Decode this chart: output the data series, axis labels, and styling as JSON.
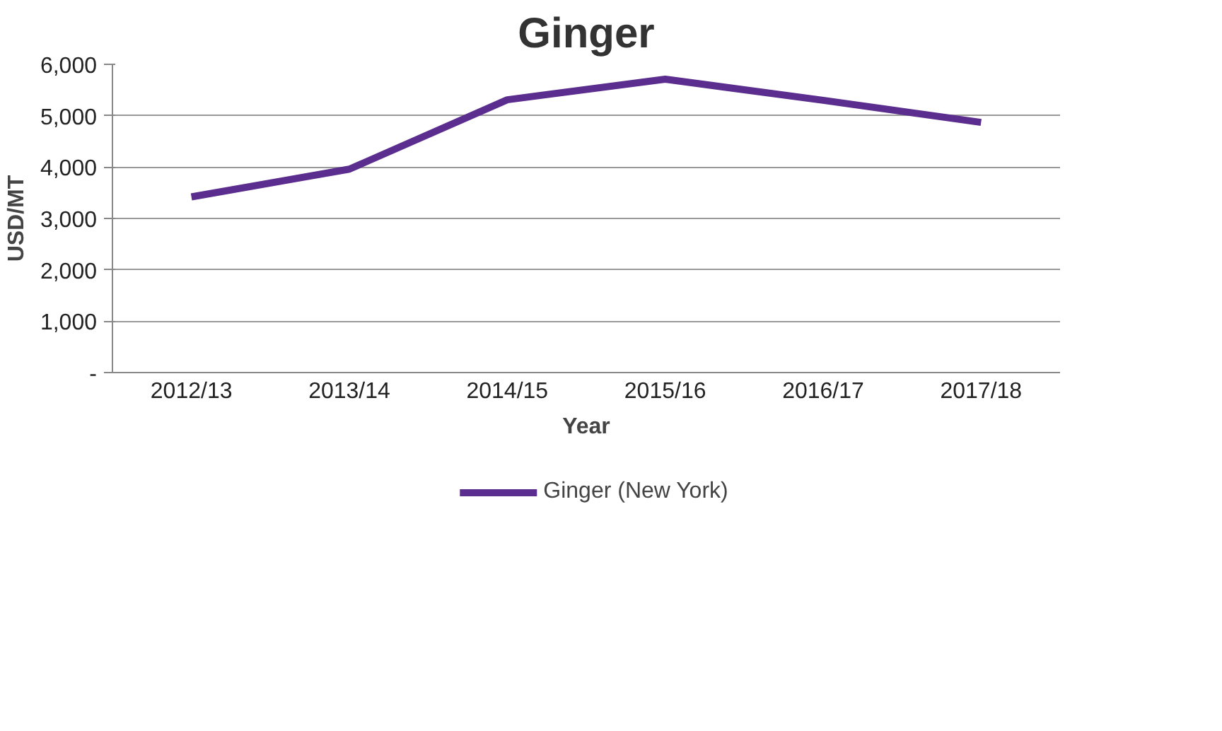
{
  "chart_data": {
    "type": "line",
    "title": "Ginger",
    "xlabel": "Year",
    "ylabel": "USD/MT",
    "categories": [
      "2012/13",
      "2013/14",
      "2014/15",
      "2015/16",
      "2016/17",
      "2017/18"
    ],
    "series": [
      {
        "name": "Ginger (New York)",
        "color": "#5b2d8e",
        "values": [
          3420,
          3960,
          5310,
          5710,
          5300,
          4870
        ]
      }
    ],
    "ylim": [
      0,
      6000
    ],
    "yticks": [
      {
        "value": 0,
        "label": "-"
      },
      {
        "value": 1000,
        "label": "1,000"
      },
      {
        "value": 2000,
        "label": "2,000"
      },
      {
        "value": 3000,
        "label": "3,000"
      },
      {
        "value": 4000,
        "label": "4,000"
      },
      {
        "value": 5000,
        "label": "5,000"
      },
      {
        "value": 6000,
        "label": "6,000"
      }
    ],
    "grid": "y",
    "legend": "bottom",
    "marker": "none",
    "line_style": "solid"
  }
}
